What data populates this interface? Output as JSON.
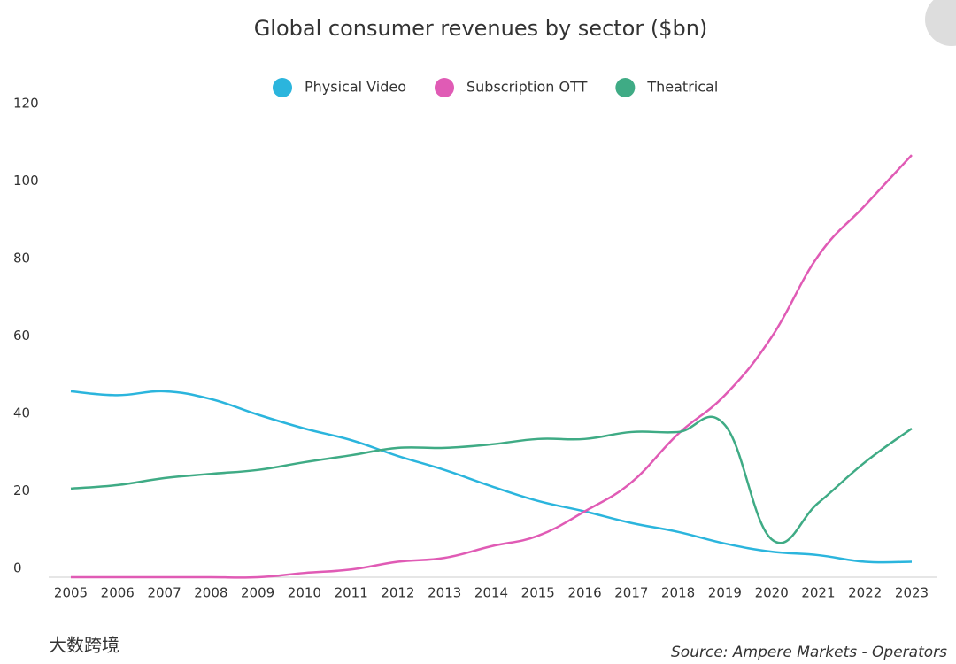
{
  "chart_data": {
    "type": "line",
    "title": "Global consumer revenues by sector ($bn)",
    "categories": [
      "2005",
      "2006",
      "2007",
      "2008",
      "2009",
      "2010",
      "2011",
      "2012",
      "2013",
      "2014",
      "2015",
      "2016",
      "2017",
      "2018",
      "2019",
      "2020",
      "2021",
      "2022",
      "2023"
    ],
    "series": [
      {
        "name": "Physical Video",
        "color": "#2bb5dd",
        "values": [
          48,
          47,
          48,
          46,
          42,
          38.4,
          35.4,
          31.3,
          27.7,
          23.5,
          19.7,
          17,
          14,
          11.7,
          8.7,
          6.6,
          5.7,
          4,
          4
        ]
      },
      {
        "name": "Subscription OTT",
        "color": "#e05bb5",
        "values": [
          0,
          0,
          0,
          0,
          0,
          1.1,
          2,
          4,
          5,
          8,
          10.7,
          17,
          24.5,
          37,
          47,
          62,
          83,
          96,
          109
        ]
      },
      {
        "name": "Theatrical",
        "color": "#3fab85",
        "values": [
          22.9,
          23.8,
          25.6,
          26.7,
          27.7,
          29.7,
          31.5,
          33.4,
          33.4,
          34.3,
          35.7,
          35.7,
          37.5,
          37.5,
          39.3,
          9.8,
          19.2,
          29.7,
          38.4
        ]
      }
    ],
    "ylim": [
      0,
      120
    ],
    "yticks": [
      0,
      20,
      40,
      60,
      80,
      100,
      120
    ],
    "grid": false,
    "legend": "top",
    "source": "Source: Ampere Markets - Operators",
    "watermark": "大数跨境"
  }
}
